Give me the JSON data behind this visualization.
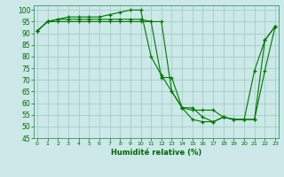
{
  "xlabel": "Humidité relative (%)",
  "background_color": "#cce8e8",
  "grid_color": "#99ccbb",
  "line_color": "#007700",
  "marker_color": "#007700",
  "ylim": [
    45,
    102
  ],
  "xlim": [
    -0.3,
    23.3
  ],
  "yticks": [
    45,
    50,
    55,
    60,
    65,
    70,
    75,
    80,
    85,
    90,
    95,
    100
  ],
  "xticks": [
    0,
    1,
    2,
    3,
    4,
    5,
    6,
    7,
    8,
    9,
    10,
    11,
    12,
    13,
    14,
    15,
    16,
    17,
    18,
    19,
    20,
    21,
    22,
    23
  ],
  "series1": [
    91,
    95,
    96,
    97,
    97,
    97,
    97,
    98,
    99,
    100,
    100,
    80,
    72,
    65,
    58,
    58,
    54,
    52,
    54,
    53,
    53,
    74,
    87,
    93
  ],
  "series2": [
    91,
    95,
    95,
    95,
    95,
    95,
    95,
    95,
    95,
    95,
    95,
    95,
    95,
    65,
    58,
    53,
    52,
    52,
    54,
    53,
    53,
    53,
    87,
    93
  ],
  "series3": [
    91,
    95,
    96,
    96,
    96,
    96,
    96,
    96,
    96,
    96,
    96,
    95,
    71,
    71,
    58,
    57,
    57,
    57,
    54,
    53,
    53,
    53,
    74,
    93
  ]
}
